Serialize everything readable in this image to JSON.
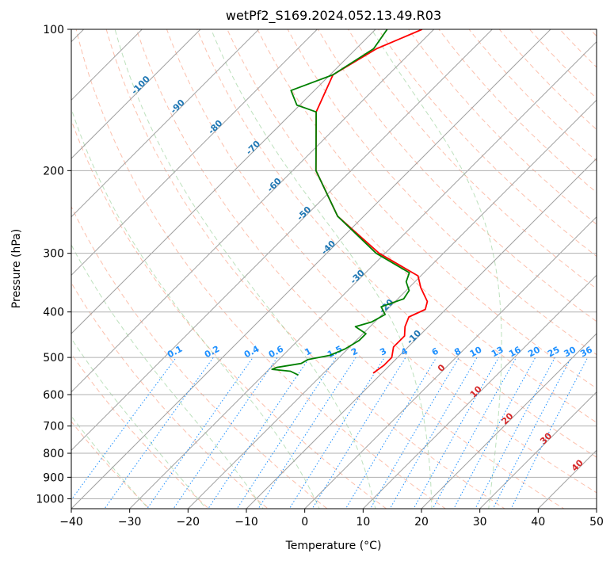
{
  "chart_data": {
    "type": "line",
    "title": "wetPf2_S169.2024.052.13.49.R03",
    "xlabel": "Temperature (°C)",
    "ylabel": "Pressure (hPa)",
    "xlim": [
      -40,
      50
    ],
    "ylim": [
      1050,
      100
    ],
    "y_scale": "log",
    "skew": "skew-T log-p",
    "grid": true,
    "x_ticks": [
      -40,
      -30,
      -20,
      -10,
      0,
      10,
      20,
      30,
      40,
      50
    ],
    "y_ticks": [
      1000,
      900,
      800,
      700,
      600,
      500,
      400,
      300,
      200,
      100
    ],
    "series": [
      {
        "role": "temperature",
        "color": "#ff0000",
        "points": [
          {
            "p": 100,
            "t": -62.0
          },
          {
            "p": 110,
            "t": -66.5
          },
          {
            "p": 125,
            "t": -69.5
          },
          {
            "p": 150,
            "t": -66.0
          },
          {
            "p": 200,
            "t": -56.0
          },
          {
            "p": 250,
            "t": -44.5
          },
          {
            "p": 300,
            "t": -31.0
          },
          {
            "p": 335,
            "t": -20.5
          },
          {
            "p": 355,
            "t": -18.0
          },
          {
            "p": 380,
            "t": -14.5
          },
          {
            "p": 395,
            "t": -13.5
          },
          {
            "p": 410,
            "t": -15.0
          },
          {
            "p": 430,
            "t": -14.0
          },
          {
            "p": 450,
            "t": -12.5
          },
          {
            "p": 475,
            "t": -12.5
          },
          {
            "p": 500,
            "t": -11.0
          },
          {
            "p": 520,
            "t": -11.0
          },
          {
            "p": 540,
            "t": -11.5
          }
        ]
      },
      {
        "role": "dewpoint",
        "color": "#008000",
        "points": [
          {
            "p": 100,
            "t": -68.0
          },
          {
            "p": 110,
            "t": -67.0
          },
          {
            "p": 125,
            "t": -69.5
          },
          {
            "p": 135,
            "t": -74.0
          },
          {
            "p": 145,
            "t": -70.5
          },
          {
            "p": 150,
            "t": -66.0
          },
          {
            "p": 200,
            "t": -56.0
          },
          {
            "p": 250,
            "t": -44.5
          },
          {
            "p": 300,
            "t": -31.5
          },
          {
            "p": 330,
            "t": -22.5
          },
          {
            "p": 345,
            "t": -21.5
          },
          {
            "p": 360,
            "t": -19.5
          },
          {
            "p": 375,
            "t": -19.0
          },
          {
            "p": 390,
            "t": -21.5
          },
          {
            "p": 405,
            "t": -19.5
          },
          {
            "p": 420,
            "t": -20.5
          },
          {
            "p": 430,
            "t": -22.5
          },
          {
            "p": 445,
            "t": -19.5
          },
          {
            "p": 460,
            "t": -19.5
          },
          {
            "p": 480,
            "t": -20.5
          },
          {
            "p": 495,
            "t": -22.0
          },
          {
            "p": 505,
            "t": -25.0
          },
          {
            "p": 515,
            "t": -25.5
          },
          {
            "p": 525,
            "t": -29.0
          },
          {
            "p": 530,
            "t": -29.5
          },
          {
            "p": 535,
            "t": -26.0
          },
          {
            "p": 545,
            "t": -24.0
          }
        ]
      }
    ],
    "dry_adiabats": [
      -30,
      -20,
      -10,
      0,
      10,
      20,
      30,
      40,
      50,
      60,
      70,
      80,
      90,
      100,
      110,
      120,
      130,
      140,
      150,
      160,
      170,
      180,
      190,
      200
    ],
    "moist_adiabats": [
      -30,
      -20,
      -10,
      0,
      10,
      20,
      30
    ],
    "isotherm_labels": [
      -100,
      -90,
      -80,
      -70,
      -60,
      -50,
      -40,
      -30,
      -20,
      -10,
      0,
      10,
      20,
      30,
      40
    ],
    "mixing_ratio_labels": [
      "0.1",
      "0.2",
      "0.4",
      "0.6",
      "1",
      "1.5",
      "2",
      "3",
      "4",
      "6",
      "8",
      "10",
      "13",
      "16",
      "20",
      "25",
      "30",
      "36"
    ],
    "colors": {
      "grid": "#b0b0b0",
      "isotherm": "#a0a0a0",
      "dry_adiabat": "#fa8c6a",
      "moist_adiabat": "#7cc47c",
      "mixing_ratio": "#1e90ff",
      "isotherm_label_cold": "#1f77b4",
      "isotherm_label_warm": "#d62728",
      "mixing_label": "#1e90ff"
    }
  }
}
